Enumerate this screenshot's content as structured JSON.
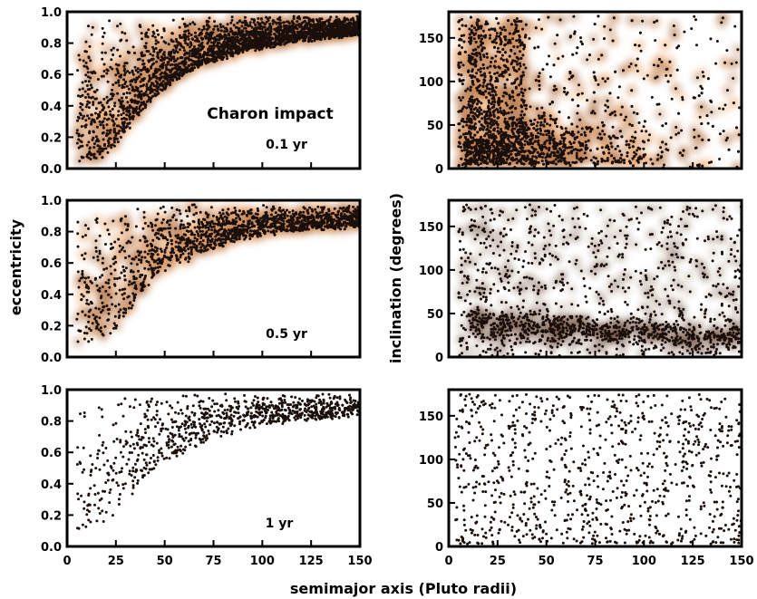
{
  "figure": {
    "xlabel": "semimajor axis (Pluto radii)",
    "ylabel_left": "eccentricity",
    "ylabel_right": "inclination (degrees)"
  },
  "colors": {
    "point": "#1a0f0a",
    "density_low": "#5a3522",
    "density_mid": "#b5774c",
    "density_high": "#f2b27c"
  },
  "chart_data": [
    {
      "type": "scatter",
      "panel": "eccentricity-0.1yr",
      "density_coloring": true,
      "annotations": [
        "Charon impact",
        "0.1 yr"
      ],
      "xlim": [
        0,
        150
      ],
      "ylim": [
        0,
        1.0
      ],
      "xticks": [
        0,
        25,
        50,
        75,
        100,
        125,
        150
      ],
      "yticks": [
        0.0,
        0.2,
        0.4,
        0.6,
        0.8,
        1.0
      ],
      "ytick_labels": [
        "0.0",
        "0.2",
        "0.4",
        "0.6",
        "0.8",
        "1.0"
      ],
      "show_x_tick_labels": false,
      "y_envelope_lower": [
        [
          5,
          0.05
        ],
        [
          12,
          0.05
        ],
        [
          20,
          0.08
        ],
        [
          27,
          0.18
        ],
        [
          35,
          0.32
        ],
        [
          45,
          0.46
        ],
        [
          55,
          0.56
        ],
        [
          70,
          0.67
        ],
        [
          90,
          0.75
        ],
        [
          115,
          0.81
        ],
        [
          150,
          0.86
        ]
      ],
      "y_max": 0.98,
      "grid": false
    },
    {
      "type": "scatter",
      "panel": "inclination-0.1yr",
      "density_coloring": true,
      "xlim": [
        0,
        150
      ],
      "ylim": [
        0,
        180
      ],
      "xticks": [
        0,
        25,
        50,
        75,
        100,
        125,
        150
      ],
      "yticks": [
        0,
        50,
        100,
        150
      ],
      "ytick_labels": [
        "0",
        "50",
        "100",
        "150"
      ],
      "show_x_tick_labels": false,
      "density_core": "a < 60, i < 70",
      "grid": false
    },
    {
      "type": "scatter",
      "panel": "eccentricity-0.5yr",
      "density_coloring": true,
      "annotations": [
        "0.5 yr"
      ],
      "xlim": [
        0,
        150
      ],
      "ylim": [
        0,
        1.0
      ],
      "xticks": [
        0,
        25,
        50,
        75,
        100,
        125,
        150
      ],
      "yticks": [
        0.0,
        0.2,
        0.4,
        0.6,
        0.8,
        1.0
      ],
      "ytick_labels": [
        "0.0",
        "0.2",
        "0.4",
        "0.6",
        "0.8",
        "1.0"
      ],
      "show_x_tick_labels": false,
      "y_envelope_lower": [
        [
          8,
          0.08
        ],
        [
          20,
          0.12
        ],
        [
          28,
          0.22
        ],
        [
          35,
          0.36
        ],
        [
          45,
          0.52
        ],
        [
          60,
          0.62
        ],
        [
          80,
          0.72
        ],
        [
          110,
          0.8
        ],
        [
          150,
          0.84
        ]
      ],
      "y_max": 0.96,
      "grid": false
    },
    {
      "type": "scatter",
      "panel": "inclination-0.5yr",
      "density_coloring": true,
      "xlim": [
        0,
        150
      ],
      "ylim": [
        0,
        180
      ],
      "xticks": [
        0,
        25,
        50,
        75,
        100,
        125,
        150
      ],
      "yticks": [
        0,
        50,
        100,
        150
      ],
      "ytick_labels": [
        "0",
        "50",
        "100",
        "150"
      ],
      "show_x_tick_labels": false,
      "grid": false
    },
    {
      "type": "scatter",
      "panel": "eccentricity-1yr",
      "density_coloring": false,
      "annotations": [
        "1 yr"
      ],
      "xlim": [
        0,
        150
      ],
      "ylim": [
        0,
        1.0
      ],
      "xticks": [
        0,
        25,
        50,
        75,
        100,
        125,
        150
      ],
      "xtick_labels": [
        "0",
        "25",
        "50",
        "75",
        "100",
        "125",
        "150"
      ],
      "yticks": [
        0.0,
        0.2,
        0.4,
        0.6,
        0.8,
        1.0
      ],
      "ytick_labels": [
        "0.0",
        "0.2",
        "0.4",
        "0.6",
        "0.8",
        "1.0"
      ],
      "show_x_tick_labels": true,
      "y_envelope_lower": [
        [
          8,
          0.1
        ],
        [
          20,
          0.15
        ],
        [
          30,
          0.28
        ],
        [
          40,
          0.45
        ],
        [
          55,
          0.58
        ],
        [
          75,
          0.7
        ],
        [
          100,
          0.78
        ],
        [
          150,
          0.84
        ]
      ],
      "y_max": 0.97,
      "grid": false
    },
    {
      "type": "scatter",
      "panel": "inclination-1yr",
      "density_coloring": false,
      "xlim": [
        0,
        150
      ],
      "ylim": [
        0,
        180
      ],
      "xticks": [
        0,
        25,
        50,
        75,
        100,
        125,
        150
      ],
      "xtick_labels": [
        "0",
        "25",
        "50",
        "75",
        "100",
        "125",
        "150"
      ],
      "yticks": [
        0,
        50,
        100,
        150
      ],
      "ytick_labels": [
        "0",
        "50",
        "100",
        "150"
      ],
      "show_x_tick_labels": true,
      "grid": false
    }
  ]
}
